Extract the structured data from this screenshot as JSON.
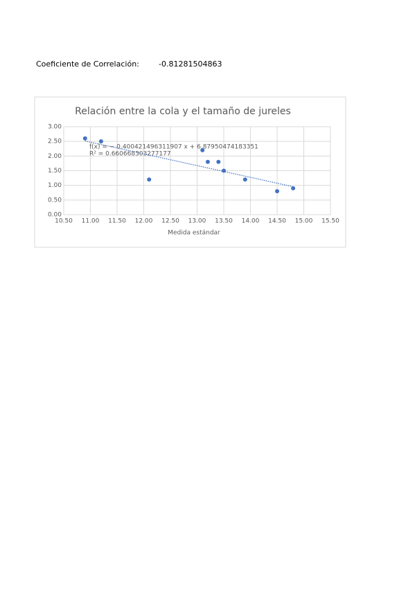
{
  "header": {
    "label": "Coeficiente de Correlación:",
    "value": -0.81281504863
  },
  "chart_data": {
    "type": "scatter",
    "title": "Relación entre la cola y el tamaño de jureles",
    "x_label": "Medida estándar",
    "x": [
      10.9,
      11.2,
      12.1,
      13.1,
      13.2,
      13.4,
      13.5,
      13.9,
      14.5,
      14.8
    ],
    "values": [
      2.6,
      2.5,
      1.2,
      2.2,
      1.8,
      1.8,
      1.5,
      1.2,
      0.8,
      0.9
    ],
    "color": "#4472c4",
    "trendline": {
      "slope": -0.400421496311907,
      "intercept": 6.87950474183351,
      "equation": "f(x) = − 0.400421496311907 x + 6.87950474183351",
      "r2": "R² = 0.660668303277177"
    },
    "xlim": [
      10.5,
      15.5
    ],
    "xticks": [
      {
        "value": 10.5,
        "label": "10.50"
      },
      {
        "value": 11,
        "label": "11.00"
      },
      {
        "value": 11.5,
        "label": "11.50"
      },
      {
        "value": 12,
        "label": "12.00"
      },
      {
        "value": 12.5,
        "label": "12.50"
      },
      {
        "value": 13,
        "label": "13.00"
      },
      {
        "value": 13.5,
        "label": "13.50"
      },
      {
        "value": 14,
        "label": "14.00"
      },
      {
        "value": 14.5,
        "label": "14.50"
      },
      {
        "value": 15,
        "label": "15.00"
      },
      {
        "value": 15.5,
        "label": "15.50"
      }
    ],
    "ylim": [
      0,
      3
    ],
    "yticks": [
      {
        "value": 0,
        "label": "0.00"
      },
      {
        "value": 0.5,
        "label": "0.50"
      },
      {
        "value": 1,
        "label": "1.00"
      },
      {
        "value": 1.5,
        "label": "1.50"
      },
      {
        "value": 2,
        "label": "2.00"
      },
      {
        "value": 2.5,
        "label": "2.50"
      },
      {
        "value": 3,
        "label": "3.00"
      }
    ],
    "grid": true
  }
}
